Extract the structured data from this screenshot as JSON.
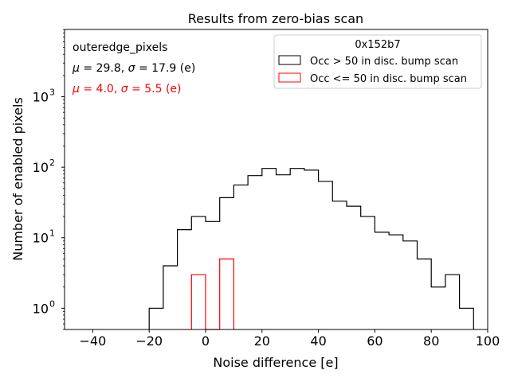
{
  "chart_data": {
    "type": "histogram",
    "title": "Results from zero-bias scan",
    "xlabel": "Noise difference [e]",
    "ylabel": "Number of enabled pixels",
    "xlim": [
      -50,
      100
    ],
    "ylim": [
      0.5,
      9000
    ],
    "yscale": "log",
    "x_ticks": [
      -40,
      -20,
      0,
      20,
      40,
      60,
      80,
      100
    ],
    "y_ticks": [
      {
        "value": 1,
        "label": "10",
        "exp": "0"
      },
      {
        "value": 10,
        "label": "10",
        "exp": "1"
      },
      {
        "value": 100,
        "label": "10",
        "exp": "2"
      },
      {
        "value": 1000,
        "label": "10",
        "exp": "3"
      }
    ],
    "bin_width": 5,
    "annotations": {
      "name": "outeredge_pixels",
      "stats_black": {
        "mu": "μ",
        "mid1": " = 29.8, ",
        "sigma": "σ",
        "mid2": " = 17.9 (e)"
      },
      "stats_red": {
        "mu": "μ",
        "mid1": " = 4.0, ",
        "sigma": "σ",
        "mid2": " = 5.5 (e)"
      }
    },
    "legend": {
      "title": "0x152b7",
      "placement": "top-right",
      "entries": [
        {
          "label": "Occ > 50 in disc. bump scan",
          "color": "#000000"
        },
        {
          "label": "Occ <= 50 in disc. bump scan",
          "color": "#ff0000"
        }
      ]
    },
    "series": [
      {
        "name": "Occ > 50 in disc. bump scan",
        "color": "#000000",
        "bins": [
          {
            "x0": -20,
            "value": 1
          },
          {
            "x0": -15,
            "value": 4
          },
          {
            "x0": -10,
            "value": 13
          },
          {
            "x0": -5,
            "value": 20
          },
          {
            "x0": 0,
            "value": 17
          },
          {
            "x0": 5,
            "value": 37
          },
          {
            "x0": 10,
            "value": 56
          },
          {
            "x0": 15,
            "value": 76
          },
          {
            "x0": 20,
            "value": 96
          },
          {
            "x0": 25,
            "value": 78
          },
          {
            "x0": 30,
            "value": 96
          },
          {
            "x0": 35,
            "value": 91
          },
          {
            "x0": 40,
            "value": 63
          },
          {
            "x0": 45,
            "value": 33
          },
          {
            "x0": 50,
            "value": 28
          },
          {
            "x0": 55,
            "value": 20
          },
          {
            "x0": 60,
            "value": 12
          },
          {
            "x0": 65,
            "value": 11
          },
          {
            "x0": 70,
            "value": 9
          },
          {
            "x0": 75,
            "value": 5
          },
          {
            "x0": 80,
            "value": 2
          },
          {
            "x0": 85,
            "value": 3
          },
          {
            "x0": 90,
            "value": 1
          }
        ]
      },
      {
        "name": "Occ <= 50 in disc. bump scan",
        "color": "#ff0000",
        "bins": [
          {
            "x0": -5,
            "value": 3
          },
          {
            "x0": 0,
            "value": 0
          },
          {
            "x0": 5,
            "value": 5
          }
        ]
      }
    ]
  }
}
